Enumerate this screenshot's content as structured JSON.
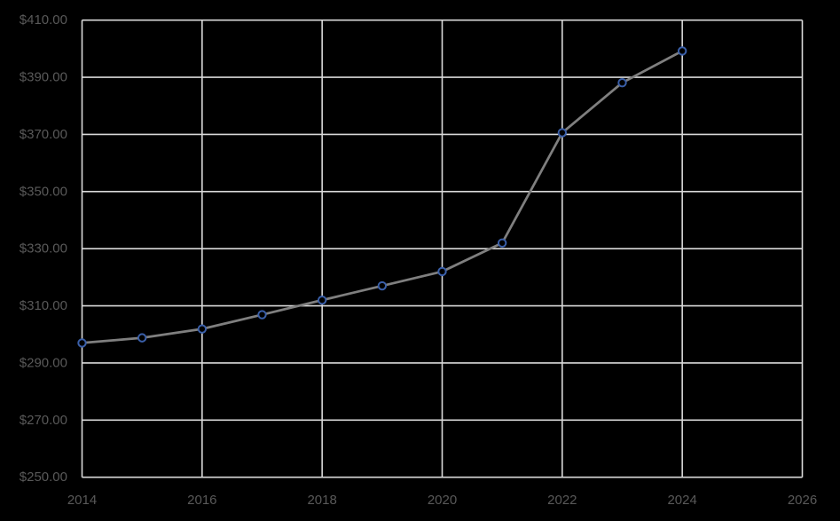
{
  "window": {
    "background_color": "#000000"
  },
  "chart_data": {
    "type": "line",
    "title": "",
    "xlabel": "",
    "ylabel": "",
    "x": [
      2014,
      2015,
      2016,
      2017,
      2018,
      2019,
      2020,
      2021,
      2022,
      2023,
      2024
    ],
    "series": [
      {
        "name": "series-1",
        "values": [
          297.0,
          298.8,
          301.9,
          306.9,
          312.0,
          317.0,
          322.0,
          332.0,
          370.6,
          388.1,
          399.2
        ]
      }
    ],
    "xlim": [
      2014,
      2026
    ],
    "ylim": [
      250,
      410
    ],
    "x_ticks": [
      2014,
      2016,
      2018,
      2020,
      2022,
      2024,
      2026
    ],
    "x_tick_labels": [
      "2014",
      "2016",
      "2018",
      "2020",
      "2022",
      "2024",
      "2026"
    ],
    "y_ticks": [
      250,
      270,
      290,
      310,
      330,
      350,
      370,
      390,
      410
    ],
    "y_tick_labels": [
      "$250.00",
      "$270.00",
      "$290.00",
      "$310.00",
      "$330.00",
      "$350.00",
      "$370.00",
      "$390.00",
      "$410.00"
    ],
    "grid": true,
    "legend": false,
    "colors": {
      "background": "#000000",
      "gridline": "#d9d9d9",
      "tick_label": "#595959",
      "series_line": "#7f7f7f",
      "marker_stroke": "#3a5fa9",
      "marker_fill": "#000000"
    }
  }
}
